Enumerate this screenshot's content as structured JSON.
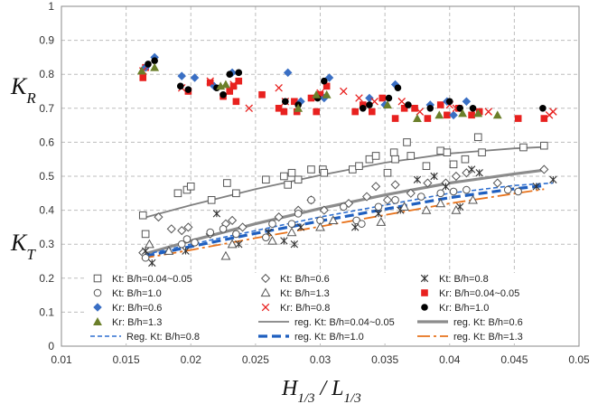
{
  "chart_data": {
    "type": "scatter",
    "title": "",
    "xlabel": "H1/3 / L1/3",
    "ylabel_upper": "KR",
    "ylabel_lower": "KT",
    "xlim": [
      0.01,
      0.05
    ],
    "ylim": [
      0,
      1
    ],
    "xticks": [
      "0.01",
      "0.015",
      "0.02",
      "0.025",
      "0.03",
      "0.035",
      "0.04",
      "0.045",
      "0.05"
    ],
    "yticks": [
      "0",
      "0.1",
      "0.2",
      "0.3",
      "0.4",
      "0.5",
      "0.6",
      "0.7",
      "0.8",
      "0.9",
      "1"
    ],
    "grid": true,
    "legend_placement": "bottom-inside",
    "series": [
      {
        "name": "Kt: B/h=0.04~0.05",
        "marker": "square-open",
        "color": "#555555",
        "points": [
          [
            0.0163,
            0.385
          ],
          [
            0.0165,
            0.33
          ],
          [
            0.019,
            0.45
          ],
          [
            0.0197,
            0.46
          ],
          [
            0.02,
            0.47
          ],
          [
            0.0216,
            0.43
          ],
          [
            0.0228,
            0.48
          ],
          [
            0.0235,
            0.45
          ],
          [
            0.0258,
            0.49
          ],
          [
            0.0272,
            0.5
          ],
          [
            0.0275,
            0.475
          ],
          [
            0.0278,
            0.51
          ],
          [
            0.0283,
            0.49
          ],
          [
            0.0293,
            0.52
          ],
          [
            0.0302,
            0.52
          ],
          [
            0.0303,
            0.51
          ],
          [
            0.0325,
            0.52
          ],
          [
            0.033,
            0.53
          ],
          [
            0.0338,
            0.55
          ],
          [
            0.0343,
            0.56
          ],
          [
            0.0352,
            0.51
          ],
          [
            0.0357,
            0.57
          ],
          [
            0.0358,
            0.55
          ],
          [
            0.0367,
            0.6
          ],
          [
            0.037,
            0.56
          ],
          [
            0.0382,
            0.53
          ],
          [
            0.0393,
            0.575
          ],
          [
            0.0398,
            0.57
          ],
          [
            0.0403,
            0.535
          ],
          [
            0.0412,
            0.55
          ],
          [
            0.0422,
            0.615
          ],
          [
            0.0425,
            0.57
          ],
          [
            0.0457,
            0.585
          ],
          [
            0.0473,
            0.59
          ]
        ]
      },
      {
        "name": "Kt: B/h=0.6",
        "marker": "diamond-open",
        "color": "#555555",
        "points": [
          [
            0.0163,
            0.275
          ],
          [
            0.0175,
            0.38
          ],
          [
            0.0185,
            0.345
          ],
          [
            0.0193,
            0.34
          ],
          [
            0.0198,
            0.35
          ],
          [
            0.0215,
            0.33
          ],
          [
            0.0227,
            0.36
          ],
          [
            0.0232,
            0.37
          ],
          [
            0.024,
            0.35
          ],
          [
            0.0268,
            0.38
          ],
          [
            0.0283,
            0.4
          ],
          [
            0.0293,
            0.43
          ],
          [
            0.0303,
            0.4
          ],
          [
            0.0322,
            0.42
          ],
          [
            0.0336,
            0.44
          ],
          [
            0.0343,
            0.47
          ],
          [
            0.0352,
            0.43
          ],
          [
            0.0358,
            0.475
          ],
          [
            0.037,
            0.45
          ],
          [
            0.0383,
            0.48
          ],
          [
            0.0397,
            0.48
          ],
          [
            0.0405,
            0.5
          ],
          [
            0.0413,
            0.51
          ],
          [
            0.0437,
            0.48
          ],
          [
            0.0473,
            0.52
          ]
        ]
      },
      {
        "name": "Kt: B/h=0.8",
        "marker": "star",
        "color": "#333333",
        "points": [
          [
            0.0165,
            0.28
          ],
          [
            0.017,
            0.245
          ],
          [
            0.0196,
            0.28
          ],
          [
            0.022,
            0.39
          ],
          [
            0.0237,
            0.3
          ],
          [
            0.026,
            0.335
          ],
          [
            0.0272,
            0.31
          ],
          [
            0.028,
            0.3
          ],
          [
            0.0285,
            0.35
          ],
          [
            0.0327,
            0.35
          ],
          [
            0.0345,
            0.39
          ],
          [
            0.0362,
            0.4
          ],
          [
            0.0375,
            0.49
          ],
          [
            0.0388,
            0.5
          ],
          [
            0.0397,
            0.47
          ],
          [
            0.0408,
            0.41
          ],
          [
            0.0417,
            0.52
          ],
          [
            0.0423,
            0.51
          ],
          [
            0.0467,
            0.47
          ],
          [
            0.048,
            0.49
          ]
        ]
      },
      {
        "name": "Kt: B/h=1.0",
        "marker": "circle-open",
        "color": "#555555",
        "points": [
          [
            0.0165,
            0.26
          ],
          [
            0.0193,
            0.3
          ],
          [
            0.0197,
            0.315
          ],
          [
            0.0203,
            0.305
          ],
          [
            0.0215,
            0.335
          ],
          [
            0.0225,
            0.345
          ],
          [
            0.0235,
            0.33
          ],
          [
            0.0258,
            0.32
          ],
          [
            0.0263,
            0.36
          ],
          [
            0.0278,
            0.36
          ],
          [
            0.0283,
            0.39
          ],
          [
            0.0293,
            0.43
          ],
          [
            0.03,
            0.37
          ],
          [
            0.0318,
            0.41
          ],
          [
            0.0328,
            0.37
          ],
          [
            0.0332,
            0.36
          ],
          [
            0.0345,
            0.41
          ],
          [
            0.0358,
            0.43
          ],
          [
            0.0378,
            0.44
          ],
          [
            0.0393,
            0.45
          ],
          [
            0.0403,
            0.455
          ],
          [
            0.0413,
            0.46
          ],
          [
            0.0445,
            0.46
          ],
          [
            0.0453,
            0.455
          ]
        ]
      },
      {
        "name": "Kt: B/h=1.3",
        "marker": "triangle-open",
        "color": "#555555",
        "points": [
          [
            0.0168,
            0.3
          ],
          [
            0.0183,
            0.28
          ],
          [
            0.0227,
            0.265
          ],
          [
            0.0232,
            0.3
          ],
          [
            0.0263,
            0.31
          ],
          [
            0.0278,
            0.335
          ],
          [
            0.03,
            0.35
          ],
          [
            0.031,
            0.37
          ],
          [
            0.0347,
            0.365
          ],
          [
            0.0365,
            0.41
          ],
          [
            0.0382,
            0.4
          ],
          [
            0.0393,
            0.42
          ],
          [
            0.0405,
            0.4
          ],
          [
            0.0418,
            0.43
          ]
        ]
      },
      {
        "name": "Kr: B/h=0.04~0.05",
        "marker": "square-filled",
        "color": "#e8211f",
        "points": [
          [
            0.0163,
            0.79
          ],
          [
            0.0165,
            0.82
          ],
          [
            0.0198,
            0.75
          ],
          [
            0.0215,
            0.775
          ],
          [
            0.0225,
            0.735
          ],
          [
            0.023,
            0.75
          ],
          [
            0.0233,
            0.765
          ],
          [
            0.0235,
            0.72
          ],
          [
            0.0237,
            0.78
          ],
          [
            0.0255,
            0.74
          ],
          [
            0.0268,
            0.7
          ],
          [
            0.0272,
            0.69
          ],
          [
            0.028,
            0.72
          ],
          [
            0.0282,
            0.69
          ],
          [
            0.0293,
            0.73
          ],
          [
            0.0297,
            0.69
          ],
          [
            0.03,
            0.74
          ],
          [
            0.0305,
            0.765
          ],
          [
            0.0327,
            0.69
          ],
          [
            0.0333,
            0.71
          ],
          [
            0.034,
            0.69
          ],
          [
            0.0348,
            0.73
          ],
          [
            0.0358,
            0.67
          ],
          [
            0.0365,
            0.7
          ],
          [
            0.0373,
            0.7
          ],
          [
            0.0383,
            0.67
          ],
          [
            0.0393,
            0.71
          ],
          [
            0.0398,
            0.68
          ],
          [
            0.0407,
            0.7
          ],
          [
            0.0417,
            0.68
          ],
          [
            0.0423,
            0.69
          ],
          [
            0.0453,
            0.67
          ],
          [
            0.0473,
            0.67
          ]
        ]
      },
      {
        "name": "Kr: B/h=0.6",
        "marker": "diamond-filled",
        "color": "#3a6fc4",
        "points": [
          [
            0.0165,
            0.82
          ],
          [
            0.0172,
            0.85
          ],
          [
            0.0193,
            0.795
          ],
          [
            0.0203,
            0.79
          ],
          [
            0.0218,
            0.765
          ],
          [
            0.0232,
            0.805
          ],
          [
            0.0275,
            0.805
          ],
          [
            0.0285,
            0.72
          ],
          [
            0.0303,
            0.73
          ],
          [
            0.0307,
            0.79
          ],
          [
            0.0338,
            0.73
          ],
          [
            0.035,
            0.71
          ],
          [
            0.0358,
            0.77
          ],
          [
            0.0385,
            0.71
          ],
          [
            0.0398,
            0.72
          ],
          [
            0.0403,
            0.68
          ],
          [
            0.0413,
            0.72
          ]
        ]
      },
      {
        "name": "Kr: B/h=0.8",
        "marker": "cross",
        "color": "#e8211f",
        "points": [
          [
            0.0163,
            0.81
          ],
          [
            0.0193,
            0.76
          ],
          [
            0.0215,
            0.78
          ],
          [
            0.0233,
            0.77
          ],
          [
            0.0245,
            0.7
          ],
          [
            0.0268,
            0.76
          ],
          [
            0.0273,
            0.72
          ],
          [
            0.03,
            0.745
          ],
          [
            0.0318,
            0.75
          ],
          [
            0.033,
            0.73
          ],
          [
            0.0342,
            0.72
          ],
          [
            0.0363,
            0.72
          ],
          [
            0.0377,
            0.69
          ],
          [
            0.04,
            0.71
          ],
          [
            0.0405,
            0.7
          ],
          [
            0.043,
            0.69
          ],
          [
            0.0477,
            0.68
          ],
          [
            0.048,
            0.69
          ]
        ]
      },
      {
        "name": "Kr: B/h=1.0",
        "marker": "circle-filled",
        "color": "#000000",
        "points": [
          [
            0.0167,
            0.83
          ],
          [
            0.0172,
            0.84
          ],
          [
            0.0192,
            0.765
          ],
          [
            0.0198,
            0.755
          ],
          [
            0.022,
            0.76
          ],
          [
            0.0225,
            0.74
          ],
          [
            0.023,
            0.8
          ],
          [
            0.0237,
            0.805
          ],
          [
            0.0273,
            0.72
          ],
          [
            0.0283,
            0.71
          ],
          [
            0.0298,
            0.73
          ],
          [
            0.0303,
            0.78
          ],
          [
            0.0333,
            0.7
          ],
          [
            0.0338,
            0.71
          ],
          [
            0.0353,
            0.73
          ],
          [
            0.036,
            0.76
          ],
          [
            0.0368,
            0.71
          ],
          [
            0.0385,
            0.7
          ],
          [
            0.04,
            0.72
          ],
          [
            0.0408,
            0.7
          ],
          [
            0.0418,
            0.7
          ],
          [
            0.0472,
            0.7
          ]
        ]
      },
      {
        "name": "Kr: B/h=1.3",
        "marker": "triangle-filled",
        "color": "#6b7f2a",
        "points": [
          [
            0.0162,
            0.81
          ],
          [
            0.0172,
            0.82
          ],
          [
            0.0223,
            0.765
          ],
          [
            0.0227,
            0.77
          ],
          [
            0.0283,
            0.7
          ],
          [
            0.0297,
            0.74
          ],
          [
            0.0305,
            0.74
          ],
          [
            0.0352,
            0.71
          ],
          [
            0.0375,
            0.67
          ],
          [
            0.0392,
            0.68
          ],
          [
            0.041,
            0.685
          ],
          [
            0.0422,
            0.685
          ],
          [
            0.0437,
            0.68
          ]
        ]
      }
    ],
    "regression": [
      {
        "name": "reg. Kt: B/h=0.04~0.05",
        "color": "#808080",
        "width": 1.8,
        "dash": "",
        "x": [
          0.0163,
          0.02,
          0.025,
          0.03,
          0.035,
          0.04,
          0.045,
          0.0473
        ],
        "y": [
          0.377,
          0.415,
          0.462,
          0.503,
          0.54,
          0.567,
          0.582,
          0.586
        ]
      },
      {
        "name": "reg. Kt: B/h=0.6",
        "color": "#8c8c8c",
        "width": 3.2,
        "dash": "",
        "x": [
          0.0163,
          0.02,
          0.025,
          0.03,
          0.035,
          0.04,
          0.045,
          0.0473
        ],
        "y": [
          0.27,
          0.31,
          0.36,
          0.405,
          0.445,
          0.48,
          0.507,
          0.518
        ]
      },
      {
        "name": "Reg. Kt: B/h=0.8",
        "color": "#2e6fd0",
        "width": 1.6,
        "dash": "5,3",
        "x": [
          0.0165,
          0.02,
          0.025,
          0.03,
          0.035,
          0.04,
          0.045,
          0.048
        ],
        "y": [
          0.27,
          0.3,
          0.34,
          0.38,
          0.415,
          0.45,
          0.473,
          0.48
        ]
      },
      {
        "name": "reg. Kt: B/h=1.0",
        "color": "#1f5fbf",
        "width": 3.2,
        "dash": "10,5",
        "x": [
          0.0165,
          0.02,
          0.025,
          0.03,
          0.035,
          0.04,
          0.045,
          0.0473
        ],
        "y": [
          0.265,
          0.293,
          0.332,
          0.368,
          0.403,
          0.437,
          0.463,
          0.472
        ]
      },
      {
        "name": "reg. Kt: B/h=1.3",
        "color": "#e8731c",
        "width": 1.8,
        "dash": "14,4,3,4",
        "x": [
          0.0162,
          0.02,
          0.025,
          0.03,
          0.035,
          0.04,
          0.045,
          0.0473
        ],
        "y": [
          0.258,
          0.283,
          0.318,
          0.352,
          0.386,
          0.42,
          0.449,
          0.462
        ]
      }
    ],
    "legend": [
      {
        "marker": "square-open",
        "label": "Kt: B/h=0.04~0.05"
      },
      {
        "marker": "diamond-open",
        "label": "Kt: B/h=0.6"
      },
      {
        "marker": "star",
        "label": "Kt: B/h=0.8"
      },
      {
        "marker": "circle-open",
        "label": "Kt: B/h=1.0"
      },
      {
        "marker": "triangle-open",
        "label": "Kt: B/h=1.3"
      },
      {
        "marker": "square-filled",
        "label": "Kr: B/h=0.04~0.05"
      },
      {
        "marker": "diamond-filled",
        "label": "Kr: B/h=0.6"
      },
      {
        "marker": "cross",
        "label": "Kr: B/h=0.8"
      },
      {
        "marker": "circle-filled",
        "label": "Kr: B/h=1.0"
      },
      {
        "marker": "triangle-filled",
        "label": "Kr: B/h=1.3"
      },
      {
        "line": 0,
        "label": "reg. Kt: B/h=0.04~0.05"
      },
      {
        "line": 1,
        "label": "reg. Kt: B/h=0.6"
      },
      {
        "line": 2,
        "label": "Reg. Kt: B/h=0.8"
      },
      {
        "line": 3,
        "label": "reg. Kt: B/h=1.0"
      },
      {
        "line": 4,
        "label": "reg. Kt: B/h=1.3"
      }
    ]
  }
}
